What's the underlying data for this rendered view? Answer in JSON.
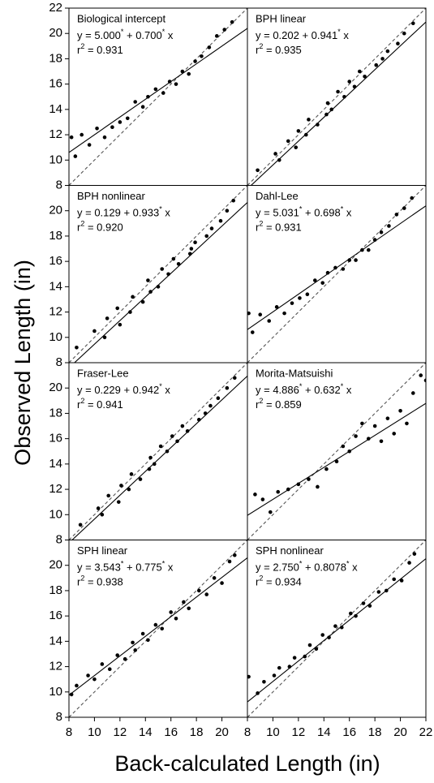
{
  "figure": {
    "x_label": "Back-calculated Length (in)",
    "y_label": "Observed Length (in)"
  },
  "chart_data": [
    {
      "type": "scatter",
      "title": "Biological intercept",
      "equation": [
        {
          "text": "y = 5.000"
        },
        {
          "sup": "*"
        },
        {
          "text": " + 0.700"
        },
        {
          "sup": "*"
        },
        {
          "text": " x"
        }
      ],
      "r2": [
        {
          "text": "r"
        },
        {
          "sup": "2"
        },
        {
          "text": " = 0.931"
        }
      ],
      "x": [
        8.2,
        8.5,
        9.0,
        9.6,
        10.2,
        10.8,
        11.4,
        12.0,
        12.6,
        13.2,
        13.8,
        14.2,
        14.8,
        15.4,
        15.9,
        16.4,
        16.9,
        17.4,
        17.9,
        18.4,
        19.0,
        19.6,
        20.2,
        20.8
      ],
      "y": [
        11.8,
        10.3,
        12.0,
        11.2,
        12.5,
        11.8,
        12.6,
        13.0,
        13.3,
        14.6,
        14.2,
        15.0,
        15.6,
        15.3,
        16.2,
        16.0,
        17.0,
        16.8,
        17.8,
        18.2,
        18.9,
        19.8,
        20.3,
        20.9
      ],
      "fit_line": {
        "x": [
          8,
          22
        ],
        "y": [
          10.6,
          20.4
        ]
      },
      "reference_line": {
        "x": [
          8,
          22
        ],
        "y": [
          8,
          22
        ]
      },
      "xlim": [
        8,
        22
      ],
      "ylim": [
        8,
        22
      ],
      "yticks": [
        8,
        10,
        12,
        14,
        16,
        18,
        20,
        22
      ],
      "xticks": []
    },
    {
      "type": "scatter",
      "title": "BPH linear",
      "equation": [
        {
          "text": "y = 0.202 + 0.941"
        },
        {
          "sup": "*"
        },
        {
          "text": " x"
        }
      ],
      "r2": [
        {
          "text": "r"
        },
        {
          "sup": "2"
        },
        {
          "text": " = 0.935"
        }
      ],
      "x": [
        8.8,
        10.5,
        10.2,
        11.8,
        11.2,
        12.6,
        12.0,
        13.5,
        12.8,
        14.2,
        14.6,
        14.3,
        15.6,
        15.1,
        16.4,
        16.0,
        17.2,
        16.8,
        18.1,
        18.6,
        19.0,
        19.8,
        20.3,
        21.0
      ],
      "y": [
        9.2,
        10.0,
        10.5,
        11.0,
        11.5,
        12.0,
        12.3,
        12.8,
        13.2,
        13.6,
        14.0,
        14.5,
        15.0,
        15.4,
        15.8,
        16.2,
        16.6,
        17.0,
        17.5,
        18.0,
        18.6,
        19.2,
        20.0,
        20.8
      ],
      "fit_line": {
        "x": [
          8,
          22
        ],
        "y": [
          7.73,
          20.904
        ]
      },
      "reference_line": {
        "x": [
          8,
          22
        ],
        "y": [
          8,
          22
        ]
      },
      "xlim": [
        8,
        22
      ],
      "ylim": [
        8,
        22
      ],
      "yticks": [],
      "xticks": []
    },
    {
      "type": "scatter",
      "title": "BPH nonlinear",
      "equation": [
        {
          "text": "y = 0.129 + 0.933"
        },
        {
          "sup": "*"
        },
        {
          "text": " x"
        }
      ],
      "r2": [
        {
          "text": "r"
        },
        {
          "sup": "2"
        },
        {
          "text": " = 0.920"
        }
      ],
      "x": [
        8.6,
        10.8,
        10.0,
        12.0,
        11.0,
        12.8,
        11.8,
        13.8,
        13.0,
        14.4,
        15.0,
        14.2,
        15.8,
        15.3,
        16.6,
        16.2,
        17.5,
        17.6,
        17.9,
        18.8,
        19.2,
        19.9,
        20.4,
        20.9
      ],
      "y": [
        9.2,
        10.0,
        10.5,
        11.0,
        11.5,
        12.0,
        12.3,
        12.8,
        13.2,
        13.6,
        14.0,
        14.5,
        15.0,
        15.4,
        15.8,
        16.2,
        16.6,
        17.0,
        17.5,
        18.0,
        18.6,
        19.2,
        20.0,
        20.8
      ],
      "fit_line": {
        "x": [
          8,
          22
        ],
        "y": [
          7.593,
          20.655
        ]
      },
      "reference_line": {
        "x": [
          8,
          22
        ],
        "y": [
          8,
          22
        ]
      },
      "xlim": [
        8,
        22
      ],
      "ylim": [
        8,
        22
      ],
      "yticks": [
        8,
        10,
        12,
        14,
        16,
        18,
        20
      ],
      "xticks": []
    },
    {
      "type": "scatter",
      "title": "Dahl-Lee",
      "equation": [
        {
          "text": "y = 5.031"
        },
        {
          "sup": "*"
        },
        {
          "text": " + 0.698"
        },
        {
          "sup": "*"
        },
        {
          "text": " x"
        }
      ],
      "r2": [
        {
          "text": "r"
        },
        {
          "sup": "2"
        },
        {
          "text": " = 0.931"
        }
      ],
      "x": [
        8.1,
        8.4,
        9.0,
        9.7,
        10.3,
        10.9,
        11.5,
        12.1,
        12.7,
        13.3,
        13.9,
        14.3,
        14.9,
        15.5,
        16.0,
        16.5,
        17.0,
        17.5,
        18.0,
        18.5,
        19.1,
        19.7,
        20.3,
        20.9
      ],
      "y": [
        11.9,
        10.4,
        11.8,
        11.3,
        12.4,
        11.9,
        12.7,
        13.1,
        13.4,
        14.5,
        14.3,
        15.1,
        15.5,
        15.4,
        16.1,
        16.1,
        16.9,
        16.9,
        17.7,
        18.3,
        18.8,
        19.7,
        20.2,
        21.0
      ],
      "fit_line": {
        "x": [
          8,
          22
        ],
        "y": [
          10.615,
          20.387
        ]
      },
      "reference_line": {
        "x": [
          8,
          22
        ],
        "y": [
          8,
          22
        ]
      },
      "xlim": [
        8,
        22
      ],
      "ylim": [
        8,
        22
      ],
      "yticks": [],
      "xticks": []
    },
    {
      "type": "scatter",
      "title": "Fraser-Lee",
      "equation": [
        {
          "text": "y = 0.229 + 0.942"
        },
        {
          "sup": "*"
        },
        {
          "text": " x"
        }
      ],
      "r2": [
        {
          "text": "r"
        },
        {
          "sup": "2"
        },
        {
          "text": " = 0.941"
        }
      ],
      "x": [
        8.9,
        10.6,
        10.3,
        11.9,
        11.1,
        12.7,
        12.1,
        13.6,
        12.9,
        14.3,
        14.7,
        14.4,
        15.7,
        15.2,
        16.5,
        16.1,
        17.3,
        16.9,
        18.2,
        18.7,
        19.1,
        19.7,
        20.4,
        21.0
      ],
      "y": [
        9.2,
        10.0,
        10.5,
        11.0,
        11.5,
        12.0,
        12.3,
        12.8,
        13.2,
        13.6,
        14.0,
        14.5,
        15.0,
        15.4,
        15.8,
        16.2,
        16.6,
        17.0,
        17.5,
        18.0,
        18.6,
        19.2,
        20.0,
        20.8
      ],
      "fit_line": {
        "x": [
          8,
          22
        ],
        "y": [
          7.765,
          20.953
        ]
      },
      "reference_line": {
        "x": [
          8,
          22
        ],
        "y": [
          8,
          22
        ]
      },
      "xlim": [
        8,
        22
      ],
      "ylim": [
        8,
        22
      ],
      "yticks": [
        8,
        10,
        12,
        14,
        16,
        18,
        20
      ],
      "xticks": []
    },
    {
      "type": "scatter",
      "title": "Morita-Matsuishi",
      "equation": [
        {
          "text": "y = 4.886"
        },
        {
          "sup": "*"
        },
        {
          "text": " + 0.632"
        },
        {
          "sup": "*"
        },
        {
          "text": " x"
        }
      ],
      "r2": [
        {
          "text": "r"
        },
        {
          "sup": "2"
        },
        {
          "text": " = 0.859"
        }
      ],
      "x": [
        8.6,
        9.2,
        9.8,
        10.4,
        11.2,
        12.0,
        12.8,
        13.5,
        14.2,
        15.0,
        15.5,
        16.0,
        16.5,
        17.0,
        17.5,
        18.0,
        18.5,
        19.0,
        19.5,
        20.0,
        20.5,
        21.0,
        21.6,
        22.0
      ],
      "y": [
        11.6,
        11.2,
        10.2,
        11.8,
        12.0,
        12.4,
        12.8,
        12.2,
        13.6,
        14.2,
        15.4,
        15.0,
        16.2,
        17.2,
        16.0,
        17.0,
        15.8,
        17.6,
        16.4,
        18.2,
        17.2,
        19.6,
        21.0,
        20.6
      ],
      "fit_line": {
        "x": [
          8,
          22
        ],
        "y": [
          9.942,
          18.79
        ]
      },
      "reference_line": {
        "x": [
          8,
          22
        ],
        "y": [
          8,
          22
        ]
      },
      "xlim": [
        8,
        22
      ],
      "ylim": [
        8,
        22
      ],
      "yticks": [],
      "xticks": []
    },
    {
      "type": "scatter",
      "title": "SPH linear",
      "equation": [
        {
          "text": "y = 3.543"
        },
        {
          "sup": "*"
        },
        {
          "text": " + 0.775"
        },
        {
          "sup": "*"
        },
        {
          "text": " x"
        }
      ],
      "r2": [
        {
          "text": "r"
        },
        {
          "sup": "2"
        },
        {
          "text": " = 0.938"
        }
      ],
      "x": [
        8.6,
        8.2,
        9.5,
        10.0,
        10.6,
        11.2,
        11.8,
        12.4,
        13.0,
        13.2,
        13.8,
        14.2,
        14.8,
        15.3,
        16.0,
        16.4,
        17.0,
        17.4,
        18.2,
        18.8,
        19.4,
        20.0,
        20.6,
        21.0
      ],
      "y": [
        10.5,
        9.8,
        11.3,
        11.0,
        12.2,
        11.8,
        12.9,
        12.6,
        13.9,
        13.3,
        14.6,
        14.1,
        15.3,
        15.0,
        16.3,
        15.8,
        17.1,
        16.6,
        18.0,
        17.7,
        19.0,
        18.6,
        20.3,
        20.8
      ],
      "fit_line": {
        "x": [
          8,
          22
        ],
        "y": [
          9.743,
          20.593
        ]
      },
      "reference_line": {
        "x": [
          8,
          22
        ],
        "y": [
          8,
          22
        ]
      },
      "xlim": [
        8,
        22
      ],
      "ylim": [
        8,
        22
      ],
      "yticks": [
        8,
        10,
        12,
        14,
        16,
        18,
        20
      ],
      "xticks": [
        8,
        10,
        12,
        14,
        16,
        18,
        20
      ]
    },
    {
      "type": "scatter",
      "title": "SPH nonlinear",
      "equation": [
        {
          "text": "y = 2.750"
        },
        {
          "sup": "*"
        },
        {
          "text": " + 0.8078"
        },
        {
          "sup": "*"
        },
        {
          "text": " x"
        }
      ],
      "r2": [
        {
          "text": "r"
        },
        {
          "sup": "2"
        },
        {
          "text": " = 0.934"
        }
      ],
      "x": [
        8.1,
        8.8,
        9.3,
        10.1,
        10.5,
        11.3,
        11.7,
        12.5,
        12.9,
        13.4,
        13.9,
        14.4,
        14.9,
        15.4,
        16.1,
        16.5,
        17.1,
        17.6,
        18.3,
        18.9,
        19.5,
        20.1,
        20.7,
        21.1
      ],
      "y": [
        11.2,
        9.9,
        10.8,
        11.3,
        11.9,
        12.0,
        12.7,
        12.8,
        13.7,
        13.4,
        14.5,
        14.3,
        15.2,
        15.1,
        16.2,
        16.0,
        17.0,
        16.8,
        17.9,
        18.0,
        18.9,
        18.8,
        20.2,
        20.9
      ],
      "fit_line": {
        "x": [
          8,
          22
        ],
        "y": [
          9.2124,
          20.5216
        ]
      },
      "reference_line": {
        "x": [
          8,
          22
        ],
        "y": [
          8,
          22
        ]
      },
      "xlim": [
        8,
        22
      ],
      "ylim": [
        8,
        22
      ],
      "yticks": [],
      "xticks": [
        8,
        10,
        12,
        14,
        16,
        18,
        20,
        22
      ]
    }
  ]
}
